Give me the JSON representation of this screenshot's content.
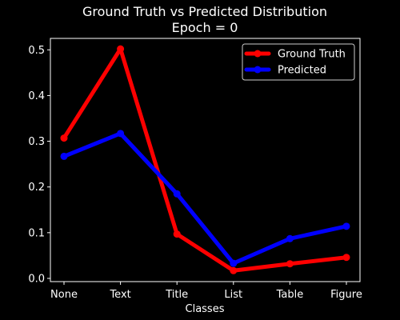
{
  "chart_data": {
    "type": "line",
    "title": "Ground Truth vs Predicted Distribution",
    "subtitle": "Epoch = 0",
    "xlabel": "Classes",
    "ylabel": "",
    "categories": [
      "None",
      "Text",
      "Title",
      "List",
      "Table",
      "Figure"
    ],
    "ylim": [
      -0.007,
      0.525
    ],
    "yticks": [
      0.0,
      0.1,
      0.2,
      0.3,
      0.4,
      0.5
    ],
    "ytick_labels": [
      "0.0",
      "0.1",
      "0.2",
      "0.3",
      "0.4",
      "0.5"
    ],
    "grid": false,
    "legend_position": "top-right",
    "series": [
      {
        "name": "Ground Truth",
        "color": "#ff0000",
        "values": [
          0.307,
          0.502,
          0.097,
          0.017,
          0.032,
          0.046
        ]
      },
      {
        "name": "Predicted",
        "color": "#0000ff",
        "values": [
          0.267,
          0.317,
          0.185,
          0.033,
          0.087,
          0.114
        ]
      }
    ]
  }
}
